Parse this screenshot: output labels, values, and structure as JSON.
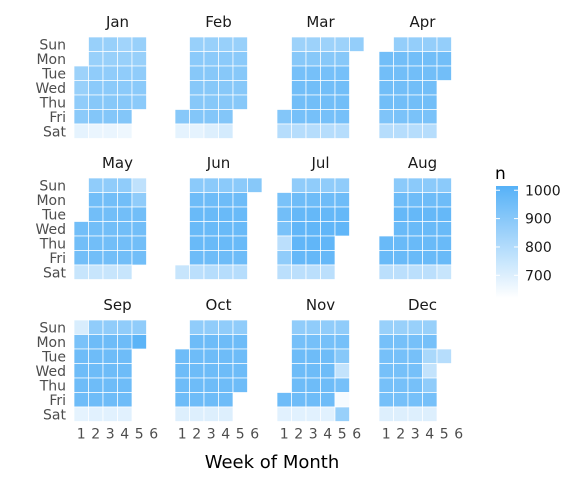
{
  "chart_data": {
    "type": "heatmap",
    "xlabel": "Week of Month",
    "ylabel": "",
    "x_ticks": [
      "1",
      "2",
      "3",
      "4",
      "5",
      "6"
    ],
    "weekdays": [
      "Sun",
      "Mon",
      "Tue",
      "Wed",
      "Thu",
      "Fri",
      "Sat"
    ],
    "legend": {
      "title": "n",
      "ticks": [
        1000,
        900,
        800,
        700
      ],
      "range": [
        620,
        1015
      ],
      "color_low": "#ffffff",
      "color_high": "#56b1f7",
      "position": "right"
    },
    "panels": [
      {
        "month": "Jan",
        "start": 1,
        "grid": [
          [
            null,
            860,
            860,
            840,
            860,
            null
          ],
          [
            null,
            860,
            860,
            860,
            860,
            null
          ],
          [
            850,
            880,
            880,
            880,
            880,
            null
          ],
          [
            860,
            890,
            890,
            890,
            890,
            null
          ],
          [
            880,
            900,
            900,
            900,
            890,
            null
          ],
          [
            890,
            910,
            910,
            910,
            null,
            null
          ],
          [
            680,
            670,
            670,
            660,
            null,
            null
          ]
        ]
      },
      {
        "month": "Feb",
        "start": 5,
        "grid": [
          [
            null,
            860,
            860,
            860,
            860,
            null
          ],
          [
            null,
            890,
            890,
            890,
            890,
            null
          ],
          [
            null,
            900,
            900,
            900,
            900,
            null
          ],
          [
            null,
            900,
            900,
            900,
            900,
            null
          ],
          [
            null,
            900,
            900,
            900,
            900,
            null
          ],
          [
            900,
            910,
            910,
            910,
            null,
            null
          ],
          [
            680,
            680,
            700,
            720,
            null,
            null
          ]
        ]
      },
      {
        "month": "Mar",
        "start": 5,
        "grid": [
          [
            null,
            850,
            850,
            850,
            850,
            870
          ],
          [
            null,
            900,
            900,
            900,
            900,
            null
          ],
          [
            null,
            940,
            940,
            940,
            940,
            null
          ],
          [
            null,
            950,
            950,
            950,
            950,
            null
          ],
          [
            null,
            950,
            950,
            950,
            950,
            null
          ],
          [
            910,
            940,
            940,
            940,
            940,
            null
          ],
          [
            790,
            790,
            790,
            790,
            790,
            null
          ]
        ]
      },
      {
        "month": "Apr",
        "start": 1,
        "grid": [
          [
            null,
            870,
            870,
            870,
            870,
            null
          ],
          [
            950,
            950,
            950,
            950,
            950,
            null
          ],
          [
            950,
            950,
            950,
            950,
            950,
            null
          ],
          [
            950,
            950,
            950,
            950,
            null,
            null
          ],
          [
            950,
            950,
            950,
            950,
            null,
            null
          ],
          [
            920,
            930,
            930,
            930,
            null,
            null
          ],
          [
            790,
            790,
            790,
            790,
            null,
            null
          ]
        ]
      },
      {
        "month": "May",
        "start": 3,
        "grid": [
          [
            null,
            880,
            880,
            880,
            770,
            null
          ],
          [
            null,
            950,
            950,
            950,
            880,
            null
          ],
          [
            null,
            950,
            950,
            950,
            950,
            null
          ],
          [
            950,
            950,
            950,
            950,
            950,
            null
          ],
          [
            950,
            950,
            950,
            950,
            950,
            null
          ],
          [
            950,
            950,
            950,
            950,
            950,
            null
          ],
          [
            750,
            750,
            750,
            750,
            null,
            null
          ]
        ]
      },
      {
        "month": "Jun",
        "start": 6,
        "grid": [
          [
            null,
            890,
            890,
            890,
            890,
            900
          ],
          [
            null,
            960,
            960,
            960,
            960,
            null
          ],
          [
            null,
            970,
            970,
            970,
            970,
            null
          ],
          [
            null,
            970,
            970,
            970,
            970,
            null
          ],
          [
            null,
            970,
            970,
            970,
            970,
            null
          ],
          [
            null,
            960,
            960,
            960,
            960,
            null
          ],
          [
            750,
            780,
            790,
            790,
            790,
            null
          ]
        ]
      },
      {
        "month": "Jul",
        "start": 1,
        "grid": [
          [
            null,
            880,
            880,
            880,
            880,
            null
          ],
          [
            930,
            960,
            960,
            960,
            960,
            null
          ],
          [
            950,
            980,
            980,
            980,
            980,
            null
          ],
          [
            930,
            990,
            990,
            990,
            990,
            null
          ],
          [
            780,
            990,
            990,
            990,
            null,
            null
          ],
          [
            880,
            980,
            980,
            980,
            null,
            null
          ],
          [
            780,
            780,
            780,
            780,
            null,
            null
          ]
        ]
      },
      {
        "month": "Aug",
        "start": 4,
        "grid": [
          [
            null,
            890,
            890,
            890,
            890,
            null
          ],
          [
            null,
            960,
            960,
            960,
            960,
            null
          ],
          [
            null,
            980,
            980,
            980,
            980,
            null
          ],
          [
            null,
            970,
            970,
            970,
            970,
            null
          ],
          [
            970,
            970,
            970,
            970,
            970,
            null
          ],
          [
            970,
            970,
            970,
            970,
            970,
            null
          ],
          [
            780,
            780,
            780,
            780,
            750,
            null
          ]
        ]
      },
      {
        "month": "Sep",
        "start": 7,
        "grid": [
          [
            710,
            880,
            880,
            880,
            880,
            null
          ],
          [
            930,
            960,
            960,
            960,
            1000,
            null
          ],
          [
            960,
            960,
            960,
            960,
            null,
            null
          ],
          [
            960,
            960,
            960,
            960,
            null,
            null
          ],
          [
            960,
            960,
            960,
            960,
            null,
            null
          ],
          [
            960,
            960,
            960,
            960,
            null,
            null
          ],
          [
            680,
            690,
            690,
            690,
            null,
            null
          ]
        ]
      },
      {
        "month": "Oct",
        "start": 2,
        "grid": [
          [
            null,
            880,
            880,
            880,
            880,
            null
          ],
          [
            null,
            960,
            960,
            960,
            960,
            null
          ],
          [
            960,
            960,
            960,
            960,
            960,
            null
          ],
          [
            960,
            960,
            960,
            960,
            960,
            null
          ],
          [
            960,
            960,
            960,
            960,
            960,
            null
          ],
          [
            960,
            960,
            960,
            960,
            null,
            null
          ],
          [
            700,
            700,
            700,
            700,
            null,
            null
          ]
        ]
      },
      {
        "month": "Nov",
        "start": 5,
        "grid": [
          [
            null,
            880,
            880,
            880,
            880,
            null
          ],
          [
            null,
            940,
            940,
            940,
            940,
            null
          ],
          [
            null,
            960,
            960,
            960,
            900,
            null
          ],
          [
            null,
            960,
            960,
            960,
            760,
            null
          ],
          [
            null,
            960,
            960,
            960,
            940,
            null
          ],
          [
            960,
            960,
            960,
            960,
            640,
            null
          ],
          [
            690,
            690,
            690,
            690,
            860,
            null
          ]
        ]
      },
      {
        "month": "Dec",
        "start": 7,
        "grid": [
          [
            860,
            860,
            860,
            860,
            null,
            null
          ],
          [
            940,
            940,
            940,
            940,
            null,
            null
          ],
          [
            940,
            940,
            940,
            820,
            790,
            null
          ],
          [
            940,
            940,
            940,
            760,
            null,
            null
          ],
          [
            940,
            940,
            940,
            880,
            null,
            null
          ],
          [
            940,
            940,
            940,
            940,
            null,
            null
          ],
          [
            700,
            700,
            700,
            700,
            null,
            null
          ]
        ]
      }
    ]
  }
}
